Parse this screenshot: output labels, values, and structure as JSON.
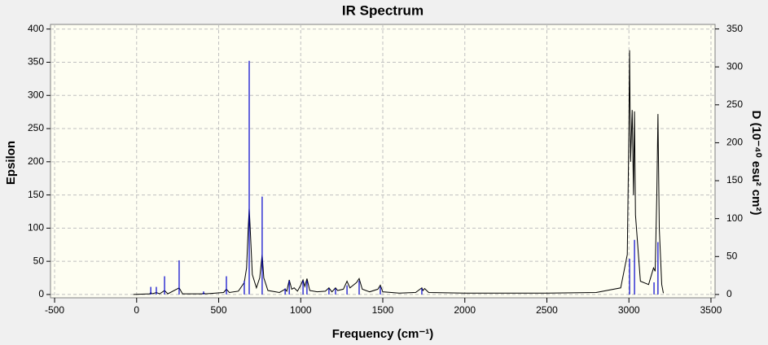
{
  "chart_data": {
    "type": "line",
    "title": "IR Spectrum",
    "x_label": "Frequency (cm⁻¹)",
    "y_label": "Epsilon",
    "y2_label": "D (10⁻⁴⁰ esu² cm²)",
    "xlim": [
      -525,
      3525
    ],
    "xticks": [
      -500,
      0,
      500,
      1000,
      1500,
      2000,
      2500,
      3000,
      3500
    ],
    "ylim": [
      -5,
      407
    ],
    "yticks": [
      0,
      50,
      100,
      150,
      200,
      250,
      300,
      350,
      400
    ],
    "y2lim": [
      -4.4,
      356
    ],
    "y2ticks": [
      0,
      50,
      100,
      150,
      200,
      250,
      300,
      350
    ],
    "grid": true,
    "series": [
      {
        "type": "line",
        "color": "#000000",
        "x": [
          -20,
          80,
          86,
          95,
          120,
          140,
          170,
          190,
          259,
          280,
          400,
          408,
          420,
          530,
          547,
          565,
          620,
          656,
          670,
          680,
          686,
          692,
          705,
          730,
          750,
          765,
          775,
          800,
          870,
          905,
          915,
          930,
          945,
          960,
          980,
          1000,
          1014,
          1025,
          1038,
          1055,
          1100,
          1150,
          1172,
          1190,
          1212,
          1225,
          1260,
          1282,
          1300,
          1320,
          1340,
          1356,
          1375,
          1420,
          1470,
          1485,
          1500,
          1600,
          1700,
          1738,
          1745,
          1755,
          1780,
          2000,
          2500,
          2800,
          2950,
          2990,
          3000,
          3004,
          3010,
          3020,
          3028,
          3034,
          3040,
          3070,
          3120,
          3150,
          3160,
          3170,
          3177,
          3185,
          3200,
          3210
        ],
        "values": [
          0,
          1,
          3,
          1,
          3,
          1,
          6,
          1,
          10,
          1,
          1,
          2,
          1,
          3,
          8,
          3,
          5,
          18,
          40,
          100,
          130,
          100,
          30,
          10,
          25,
          60,
          25,
          6,
          3,
          8,
          5,
          22,
          8,
          10,
          5,
          14,
          22,
          12,
          24,
          6,
          4,
          5,
          10,
          4,
          10,
          6,
          8,
          20,
          10,
          14,
          18,
          24,
          8,
          4,
          8,
          14,
          4,
          2,
          3,
          10,
          6,
          9,
          3,
          2,
          2,
          3,
          10,
          60,
          250,
          368,
          200,
          278,
          150,
          276,
          120,
          20,
          15,
          40,
          35,
          150,
          272,
          100,
          15,
          2
        ]
      },
      {
        "type": "stem",
        "color": "#0000cc",
        "axis": "y2",
        "x": [
          86,
          120,
          170,
          259,
          408,
          547,
          656,
          686,
          765,
          905,
          930,
          1014,
          1038,
          1172,
          1212,
          1282,
          1356,
          1485,
          1738,
          3004,
          3034,
          3153,
          3177
        ],
        "values": [
          10,
          10,
          24,
          45,
          4,
          24,
          18,
          308,
          129,
          8,
          18,
          18,
          18,
          8,
          8,
          12,
          18,
          10,
          8,
          47,
          72,
          16,
          69
        ]
      }
    ]
  }
}
